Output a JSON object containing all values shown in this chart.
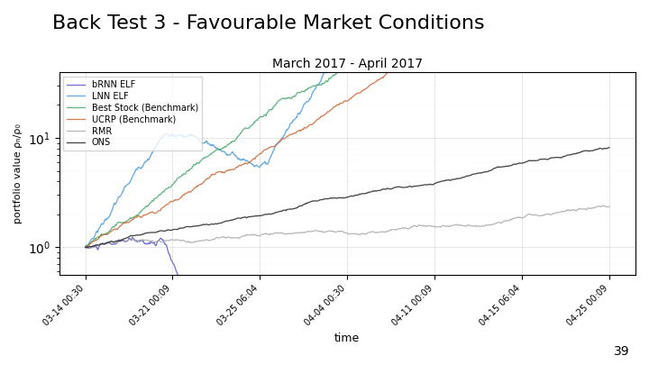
{
  "title": "Back Test 3 - Favourable Market Conditions",
  "subtitle": "March 2017 - April 2017",
  "xlabel": "time",
  "ylabel": "portfolio value ρₙ/ρ₀",
  "page_number": "39",
  "legend_labels": [
    "bRNN ELF",
    "LNN ELF",
    "Best Stock (Benchmark)",
    "UCRP (Benchmark)",
    "RMR",
    "ONS"
  ],
  "line_colors": [
    "#5555cc",
    "#4499dd",
    "#44aa66",
    "#cc6633",
    "#aaaaaa",
    "#222222"
  ],
  "background": "#ffffff",
  "grid": true,
  "n_points": 900,
  "xtick_labels": [
    "03-14 00:30",
    "03-21 00:09",
    "03-25 06:04",
    "04-04 00:30",
    "04-11 00:09",
    "04-15 06:04",
    "04-25 00:09"
  ]
}
